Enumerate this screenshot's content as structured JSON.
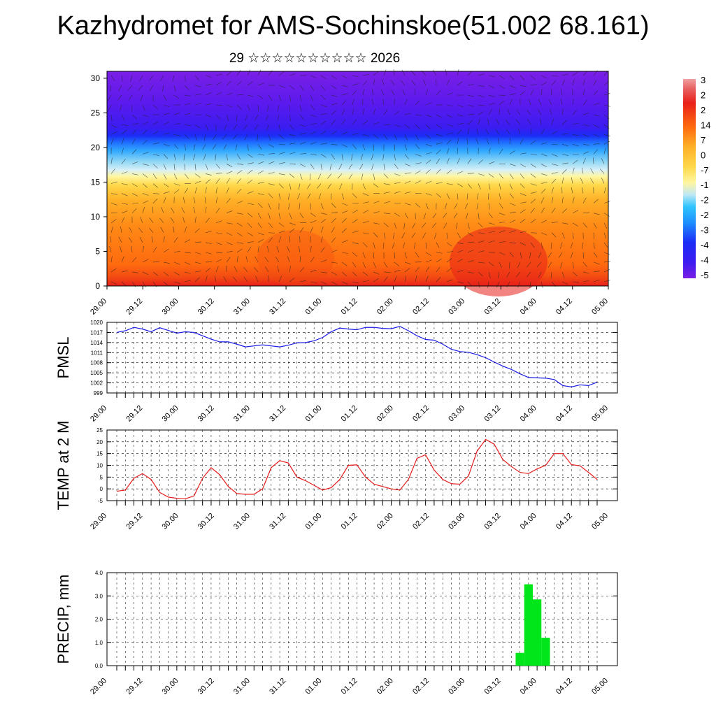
{
  "title": "Kazhydromet for AMS-Sochinskoe(51.002 68.161)",
  "subtitle": "29 ☆☆☆☆☆☆☆☆☆☆ 2026",
  "x_tick_labels": [
    "29.00",
    "29.12",
    "30.00",
    "30.12",
    "31.00",
    "31.12",
    "01.00",
    "01.12",
    "02.00",
    "02.12",
    "03.00",
    "03.12",
    "04.00",
    "04.12",
    "05.00"
  ],
  "chart_data": [
    {
      "type": "heatmap",
      "panel": "cross-section",
      "y_ticks": [
        0,
        5,
        10,
        15,
        20,
        25,
        30
      ],
      "ylim": [
        0,
        31
      ],
      "colorbar_labels": [
        "3",
        "2",
        "2",
        "14",
        "7",
        "0",
        "-7",
        "-1",
        "-2",
        "-2",
        "-3",
        "-4",
        "-4",
        "-5"
      ],
      "colors": [
        "#7a1fe6",
        "#3c1cf0",
        "#1c3cff",
        "#1e90ff",
        "#31c4ff",
        "#bfe8f5",
        "#fff6a0",
        "#ffd84a",
        "#ffb027",
        "#ff8a16",
        "#ff6a0f",
        "#f63a12",
        "#e8201a"
      ]
    },
    {
      "type": "line",
      "name": "PMSL",
      "ylabel": "PMSL",
      "y_ticks": [
        999,
        1002,
        1005,
        1008,
        1011,
        1014,
        1017,
        1020
      ],
      "ylim": [
        999,
        1020
      ],
      "color": "#1a1ae6",
      "x": [
        0,
        1,
        2,
        3,
        4,
        5,
        6,
        7,
        8,
        9,
        10,
        11,
        12,
        13,
        14,
        15,
        16,
        17,
        18,
        19,
        20,
        21,
        22,
        23,
        24,
        25,
        26,
        27,
        28,
        29,
        30,
        31,
        32,
        33,
        34,
        35,
        36,
        37,
        38,
        39,
        40,
        41,
        42,
        43,
        44,
        45,
        46,
        47,
        48,
        49,
        50,
        51,
        52,
        53,
        54,
        55,
        56
      ],
      "values": [
        1017,
        1017.5,
        1018.5,
        1018,
        1017.2,
        1018.4,
        1017.6,
        1016.8,
        1017.2,
        1017,
        1016,
        1015,
        1014.2,
        1014.2,
        1013.5,
        1012.7,
        1013,
        1013.3,
        1013,
        1012.7,
        1013.2,
        1013.9,
        1014,
        1014.5,
        1015.5,
        1017.2,
        1018.3,
        1018,
        1017.8,
        1018.5,
        1018.5,
        1018.2,
        1018.1,
        1018.8,
        1017.5,
        1016,
        1014.9,
        1014.7,
        1013.5,
        1012,
        1011.3,
        1011.1,
        1010.4,
        1009.5,
        1008.2,
        1007,
        1006,
        1004.7,
        1003.6,
        1003.5,
        1003.4,
        1003,
        1001.2,
        1000.8,
        1001.4,
        1001.2,
        1002.2
      ]
    },
    {
      "type": "line",
      "name": "TEMP at 2 M",
      "ylabel": "TEMP at 2 M",
      "y_ticks": [
        -5,
        0,
        5,
        10,
        15,
        20,
        25
      ],
      "ylim": [
        -5,
        25
      ],
      "color": "#e61a1a",
      "x": [
        0,
        1,
        2,
        3,
        4,
        5,
        6,
        7,
        8,
        9,
        10,
        11,
        12,
        13,
        14,
        15,
        16,
        17,
        18,
        19,
        20,
        21,
        22,
        23,
        24,
        25,
        26,
        27,
        28,
        29,
        30,
        31,
        32,
        33,
        34,
        35,
        36,
        37,
        38,
        39,
        40,
        41,
        42,
        43,
        44,
        45,
        46,
        47,
        48,
        49,
        50,
        51,
        52,
        53,
        54,
        55,
        56
      ],
      "values": [
        -1,
        -0.5,
        4.5,
        6.5,
        4,
        -1.5,
        -3.5,
        -4,
        -4.2,
        -3,
        4.5,
        9,
        6,
        1,
        -2,
        -2.3,
        -2.3,
        0,
        9,
        12,
        11,
        5,
        3.5,
        1.5,
        -0.5,
        0.5,
        4,
        10,
        10.2,
        5,
        2,
        1,
        0,
        -0.5,
        4,
        13,
        14.5,
        8,
        4,
        2.2,
        2,
        5.5,
        16,
        21,
        19,
        12.5,
        9.5,
        7,
        6.5,
        8.5,
        10,
        15,
        15,
        10.3,
        9.8,
        7,
        4
      ]
    },
    {
      "type": "bar",
      "name": "PRECIP, mm",
      "ylabel": "PRECIP, mm",
      "y_ticks": [
        "0.0",
        "1.0",
        "2.0",
        "3.0",
        "4.0"
      ],
      "ylim": [
        0,
        4
      ],
      "color": "#00e61a",
      "x": [
        47,
        48,
        49,
        50
      ],
      "values": [
        0.55,
        3.5,
        2.85,
        1.2
      ]
    }
  ]
}
